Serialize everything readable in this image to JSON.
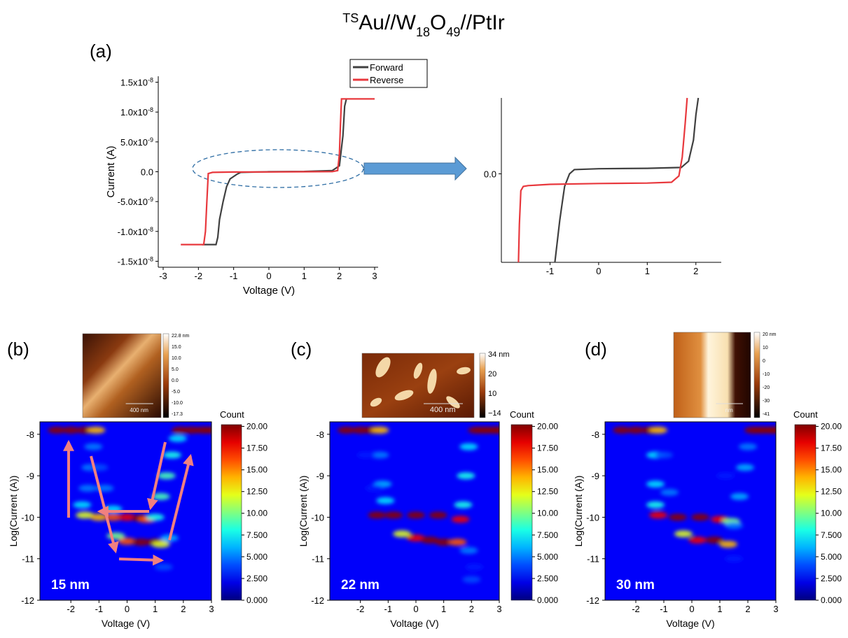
{
  "figure": {
    "title_parts": [
      {
        "text": "TS",
        "style": "sup"
      },
      {
        "text": "Au//W",
        "style": "normal"
      },
      {
        "text": "18",
        "style": "sub"
      },
      {
        "text": "O",
        "style": "normal"
      },
      {
        "text": "49",
        "style": "sub"
      },
      {
        "text": "//PtIr",
        "style": "normal"
      }
    ]
  },
  "chart_data": [
    {
      "type": "line",
      "panel_label": "(a)",
      "x_label": "Voltage (V)",
      "y_label": "Current (A)",
      "legend": "top-right",
      "xlim": [
        -3,
        3
      ],
      "xticks": [
        -3,
        -2,
        -1,
        0,
        1,
        2,
        3
      ],
      "ylim": [
        -1.6e-08,
        1.6e-08
      ],
      "yticks": [
        {
          "value": 1.5e-08,
          "label": "1.5x10",
          "exp": "-8"
        },
        {
          "value": 1e-08,
          "label": "1.0x10",
          "exp": "-8"
        },
        {
          "value": 5e-09,
          "label": "5.0x10",
          "exp": "-9"
        },
        {
          "value": 0,
          "label": "0.0"
        },
        {
          "value": -5e-09,
          "label": "-5.0x10",
          "exp": "-9"
        },
        {
          "value": -1e-08,
          "label": "-1.0x10",
          "exp": "-8"
        },
        {
          "value": -1.5e-08,
          "label": "-1.5x10",
          "exp": "-8"
        }
      ],
      "series": [
        {
          "name": "Forward",
          "color": "#404040",
          "x": [
            -1.9,
            -1.5,
            -1.45,
            -1.4,
            -1.3,
            -1.2,
            -1.1,
            -0.9,
            -0.8,
            0,
            1.0,
            1.8,
            2.0,
            2.1,
            2.15,
            2.2
          ],
          "values": [
            -1.22e-08,
            -1.22e-08,
            -1.1e-08,
            -8e-09,
            -5e-09,
            -2.5e-09,
            -1.2e-09,
            -4e-10,
            -1e-10,
            0,
            5e-11,
            2e-10,
            1e-09,
            6e-09,
            1.1e-08,
            1.22e-08
          ]
        },
        {
          "name": "Reverse",
          "color": "#e8383d",
          "x": [
            -2.5,
            -2.0,
            -1.85,
            -1.8,
            -1.76,
            -1.72,
            -1.6,
            -1.0,
            0,
            1.0,
            1.8,
            1.95,
            2.0,
            2.03,
            2.06,
            3.0
          ],
          "values": [
            -1.22e-08,
            -1.22e-08,
            -1.22e-08,
            -1e-08,
            -5e-09,
            -3e-10,
            -1e-10,
            -5e-11,
            -3e-11,
            0,
            2e-11,
            2e-10,
            3e-09,
            8e-09,
            1.22e-08,
            1.22e-08
          ]
        }
      ]
    },
    {
      "type": "line",
      "xlim": [
        -1.9,
        2.45
      ],
      "xticks": [
        -1,
        0,
        1,
        2
      ],
      "ylim": [
        -2.1e-09,
        1.8e-09
      ],
      "yticks": [
        {
          "value": 0,
          "label": "0.0"
        }
      ],
      "series": [
        {
          "color": "#404040",
          "x": [
            -0.9,
            -0.85,
            -0.8,
            -0.75,
            -0.7,
            -0.6,
            -0.5,
            0,
            1.0,
            1.7,
            1.85,
            1.95,
            2.0,
            2.05
          ],
          "values": [
            -2.1e-09,
            -1.6e-09,
            -1.1e-09,
            -7e-10,
            -3e-10,
            0,
            1e-10,
            1.2e-10,
            1.3e-10,
            1.5e-10,
            3e-10,
            8e-10,
            1.4e-09,
            1.8e-09
          ]
        },
        {
          "color": "#e8383d",
          "x": [
            -1.65,
            -1.63,
            -1.6,
            -1.55,
            -1.45,
            -1.0,
            0,
            1.0,
            1.5,
            1.65,
            1.72,
            1.78,
            1.82
          ],
          "values": [
            -2.1e-09,
            -1.2e-09,
            -4e-10,
            -3e-10,
            -2.8e-10,
            -2.5e-10,
            -2.3e-10,
            -2.2e-10,
            -2e-10,
            -5e-11,
            4e-10,
            1.2e-09,
            1.8e-09
          ]
        }
      ]
    },
    {
      "type": "heatmap",
      "panel_label": "(b)",
      "thickness_label": "15 nm",
      "x_label": "Voltage (V)",
      "y_label": "Log(Current (A))",
      "colorbar_title": "Count",
      "color_map": "jet",
      "xlim": [
        -3.1,
        3
      ],
      "xticks": [
        -2,
        -1,
        0,
        1,
        2,
        3
      ],
      "ylim": [
        -12,
        -7.7
      ],
      "yticks": [
        -8,
        -9,
        -10,
        -11,
        -12
      ],
      "clim": [
        0,
        20.2
      ],
      "cticks": [
        {
          "value": 20,
          "label": "20.00"
        },
        {
          "value": 17.5,
          "label": "17.50"
        },
        {
          "value": 15,
          "label": "15.00"
        },
        {
          "value": 12.5,
          "label": "12.50"
        },
        {
          "value": 10,
          "label": "10.00"
        },
        {
          "value": 7.5,
          "label": "7.500"
        },
        {
          "value": 5,
          "label": "5.000"
        },
        {
          "value": 2.5,
          "label": "2.500"
        },
        {
          "value": 0,
          "label": "0.000"
        }
      ],
      "points": {
        "x": [
          -2.5,
          -2.0,
          -1.5,
          -1.1,
          1.9,
          2.3,
          2.7,
          3.0,
          -1.2,
          -1.3,
          -1.4,
          -1.6,
          -1.0,
          -0.8,
          -0.5,
          -1.5,
          -1.0,
          -0.5,
          0,
          0.5,
          0.7,
          -0.4,
          0,
          0.5,
          1.0,
          1.2,
          1.0,
          1.2,
          1.4,
          1.6,
          1.8,
          1.5,
          1.3
        ],
        "y": [
          -7.9,
          -7.9,
          -7.9,
          -7.9,
          -7.9,
          -7.9,
          -7.9,
          -7.9,
          -8.3,
          -8.8,
          -9.3,
          -9.7,
          -8.8,
          -9.3,
          -9.8,
          -9.95,
          -10.0,
          -10.0,
          -10.0,
          -10.02,
          -10.05,
          -10.45,
          -10.58,
          -10.6,
          -10.6,
          -10.65,
          -10.0,
          -9.5,
          -9.0,
          -8.5,
          -8.1,
          -10.5,
          -11.2
        ],
        "counts": [
          20,
          20,
          20,
          14,
          20,
          20,
          20,
          20,
          5,
          5,
          5,
          7,
          4,
          5,
          7,
          12,
          14,
          16,
          18,
          20,
          16,
          10,
          16,
          20,
          20,
          12,
          8,
          9,
          9,
          8,
          7,
          6,
          4
        ]
      },
      "inset": {
        "colorbar_labels": [
          "22.8 nm",
          "15.0",
          "10.0",
          "5.0",
          "0.0",
          "-5.0",
          "-10.0",
          "-17.3"
        ],
        "scale_bar": "400 nm"
      }
    },
    {
      "type": "heatmap",
      "panel_label": "(c)",
      "thickness_label": "22 nm",
      "x_label": "Voltage (V)",
      "y_label": "Log(Current (A))",
      "colorbar_title": "Count",
      "color_map": "jet",
      "xlim": [
        -3.1,
        3
      ],
      "xticks": [
        -2,
        -1,
        0,
        1,
        2,
        3
      ],
      "ylim": [
        -12,
        -7.7
      ],
      "yticks": [
        -8,
        -9,
        -10,
        -11,
        -12
      ],
      "clim": [
        0,
        20.2
      ],
      "cticks": [
        {
          "value": 20,
          "label": "20.00"
        },
        {
          "value": 17.5,
          "label": "17.50"
        },
        {
          "value": 15,
          "label": "15.00"
        },
        {
          "value": 12.5,
          "label": "12.50"
        },
        {
          "value": 10,
          "label": "10.00"
        },
        {
          "value": 7.5,
          "label": "7.500"
        },
        {
          "value": 5,
          "label": "5.000"
        },
        {
          "value": 2.5,
          "label": "2.500"
        },
        {
          "value": 0,
          "label": "0.000"
        }
      ],
      "points": {
        "x": [
          -2.5,
          -2.0,
          -1.6,
          -1.3,
          2.2,
          2.5,
          2.8,
          3.0,
          -1.3,
          -1.2,
          -1.1,
          -1.8,
          -1.5,
          -1.4,
          -0.8,
          0,
          0.8,
          1.6,
          -0.5,
          0,
          0.5,
          1.0,
          1.5,
          1.9,
          1.8,
          1.7,
          1.9,
          2.0,
          2.1
        ],
        "y": [
          -7.9,
          -7.9,
          -7.9,
          -7.9,
          -7.9,
          -7.9,
          -7.9,
          -7.9,
          -8.5,
          -9.2,
          -9.6,
          -8.5,
          -9.3,
          -9.95,
          -9.95,
          -9.95,
          -9.95,
          -10.05,
          -10.4,
          -10.5,
          -10.55,
          -10.6,
          -10.6,
          -8.3,
          -9.0,
          -9.7,
          -10.8,
          -11.5,
          -11.2
        ],
        "counts": [
          20,
          20,
          20,
          14,
          20,
          20,
          20,
          20,
          5,
          6,
          7,
          3,
          3,
          20,
          20,
          20,
          20,
          18,
          12,
          18,
          20,
          20,
          16,
          7,
          8,
          8,
          5,
          4,
          3
        ]
      },
      "inset": {
        "colorbar_labels": [
          "34 nm",
          "20",
          "10",
          "−14"
        ],
        "scale_bar": "400 nm"
      }
    },
    {
      "type": "heatmap",
      "panel_label": "(d)",
      "thickness_label": "30 nm",
      "x_label": "Voltage (V)",
      "y_label": "Log(Current (A))",
      "colorbar_title": "Count",
      "color_map": "jet",
      "xlim": [
        -3.1,
        3
      ],
      "xticks": [
        -2,
        -1,
        0,
        1,
        2,
        3
      ],
      "ylim": [
        -12,
        -7.7
      ],
      "yticks": [
        -8,
        -9,
        -10,
        -11,
        -12
      ],
      "clim": [
        0,
        20.2
      ],
      "cticks": [
        {
          "value": 20,
          "label": "20.00"
        },
        {
          "value": 17.5,
          "label": "17.50"
        },
        {
          "value": 15,
          "label": "15.00"
        },
        {
          "value": 12.5,
          "label": "12.50"
        },
        {
          "value": 10,
          "label": "10.00"
        },
        {
          "value": 7.5,
          "label": "7.500"
        },
        {
          "value": 5,
          "label": "5.000"
        },
        {
          "value": 2.5,
          "label": "2.500"
        },
        {
          "value": 0,
          "label": "0.000"
        }
      ],
      "points": {
        "x": [
          -2.5,
          -2.0,
          -1.5,
          -1.2,
          2.2,
          2.5,
          2.8,
          3.0,
          -1.3,
          -1.3,
          -1.3,
          -1.0,
          -0.8,
          -1.2,
          -0.5,
          0.3,
          1.0,
          1.4,
          -0.3,
          0.2,
          0.8,
          1.3,
          1.5,
          1.7,
          1.9,
          2.0,
          1.2,
          1.5
        ],
        "y": [
          -7.9,
          -7.9,
          -7.9,
          -7.9,
          -7.9,
          -7.9,
          -7.9,
          -7.9,
          -8.5,
          -9.2,
          -9.7,
          -8.5,
          -9.4,
          -9.95,
          -10.0,
          -10.0,
          -10.05,
          -10.1,
          -10.4,
          -10.55,
          -10.55,
          -10.65,
          -10.2,
          -9.5,
          -8.8,
          -8.3,
          -9.0,
          -11.0
        ],
        "counts": [
          20,
          20,
          20,
          14,
          20,
          20,
          20,
          20,
          7,
          7,
          8,
          4,
          5,
          18,
          20,
          20,
          18,
          10,
          12,
          18,
          20,
          14,
          5,
          6,
          6,
          5,
          3,
          3
        ]
      },
      "inset": {
        "colorbar_labels": [
          "20 nm",
          "10",
          "0",
          "-10",
          "-20",
          "-30",
          "-41"
        ],
        "scale_bar": "nm"
      }
    }
  ]
}
